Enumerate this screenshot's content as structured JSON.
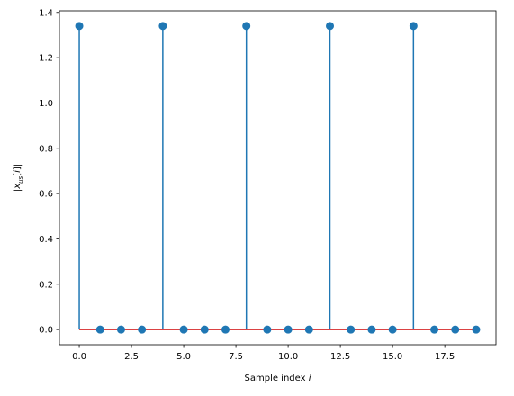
{
  "chart_data": {
    "type": "stem",
    "xlabel": "Sample index i",
    "ylabel": "|x_us[i]|",
    "xlim": [
      -0.95,
      19.95
    ],
    "ylim": [
      -0.067,
      1.407
    ],
    "xticks": [
      0.0,
      2.5,
      5.0,
      7.5,
      10.0,
      12.5,
      15.0,
      17.5
    ],
    "xtick_labels": [
      "0.0",
      "2.5",
      "5.0",
      "7.5",
      "10.0",
      "12.5",
      "15.0",
      "17.5"
    ],
    "yticks": [
      0.0,
      0.2,
      0.4,
      0.6,
      0.8,
      1.0,
      1.2,
      1.4
    ],
    "ytick_labels": [
      "0.0",
      "0.2",
      "0.4",
      "0.6",
      "0.8",
      "1.0",
      "1.2",
      "1.4"
    ],
    "x": [
      0,
      1,
      2,
      3,
      4,
      5,
      6,
      7,
      8,
      9,
      10,
      11,
      12,
      13,
      14,
      15,
      16,
      17,
      18,
      19
    ],
    "values": [
      1.34,
      0,
      0,
      0,
      1.34,
      0,
      0,
      0,
      1.34,
      0,
      0,
      0,
      1.34,
      0,
      0,
      0,
      1.34,
      0,
      0,
      0
    ],
    "baseline": 0,
    "colors": {
      "stem": "#1f77b4",
      "marker": "#1f77b4",
      "baseline": "#d62728"
    }
  }
}
